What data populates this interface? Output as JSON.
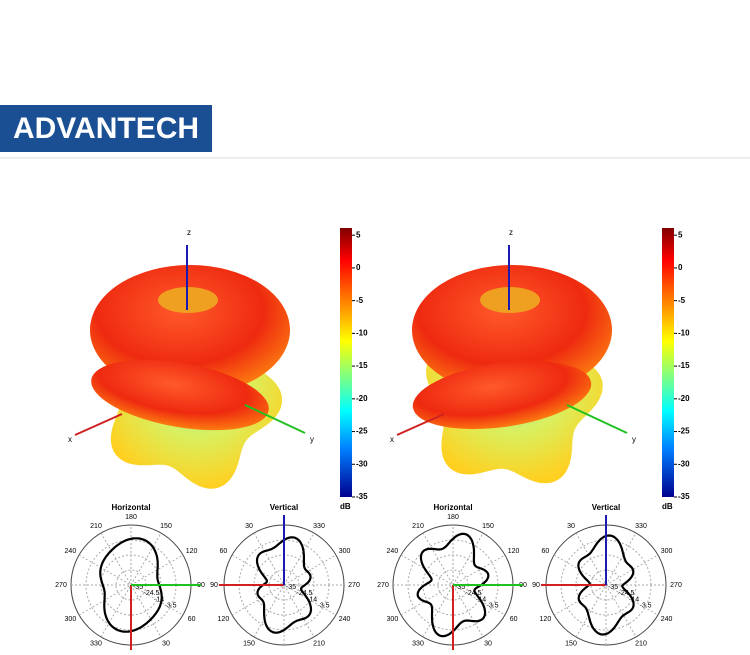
{
  "header": {
    "logo": "ADVANTECH"
  },
  "patterns": [
    {
      "axes": {
        "x": "x",
        "y": "y",
        "z": "z"
      },
      "colorbar": {
        "ticks": [
          5,
          0,
          -5,
          -10,
          -15,
          -20,
          -25,
          -30,
          -35
        ],
        "unit": "dB"
      },
      "polar": [
        {
          "title": "Horizontal",
          "angle_labels": [
            180,
            150,
            120,
            90,
            60,
            30,
            330,
            300,
            270,
            240,
            210
          ],
          "radial_labels": [
            -35,
            -24.5,
            -14,
            -3.5
          ]
        },
        {
          "title": "Vertical",
          "angle_labels": [
            330,
            300,
            270,
            240,
            210,
            150,
            120,
            90,
            60,
            30
          ],
          "radial_labels": [
            -35,
            -24.5,
            -14,
            -3.5
          ]
        }
      ]
    },
    {
      "axes": {
        "x": "x",
        "y": "y",
        "z": "z"
      },
      "colorbar": {
        "ticks": [
          5,
          0,
          -5,
          -10,
          -15,
          -20,
          -25,
          -30,
          -35
        ],
        "unit": "dB"
      },
      "polar": [
        {
          "title": "Horizontal",
          "angle_labels": [
            180,
            150,
            120,
            90,
            60,
            30,
            330,
            300,
            270,
            240,
            210
          ],
          "radial_labels": [
            -35,
            -24.5,
            -14,
            -3.5
          ]
        },
        {
          "title": "Vertical",
          "angle_labels": [
            330,
            300,
            270,
            240,
            210,
            150,
            120,
            90,
            60,
            30
          ],
          "radial_labels": [
            -35,
            -24.5,
            -14,
            -3.5
          ]
        }
      ]
    }
  ]
}
